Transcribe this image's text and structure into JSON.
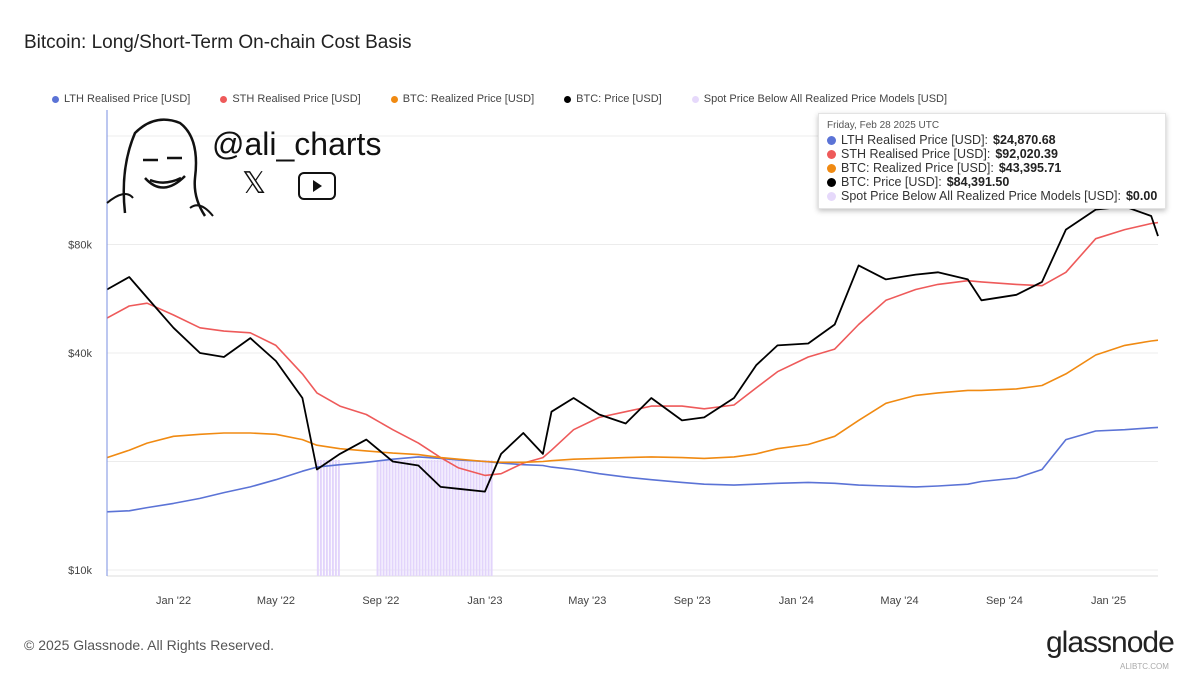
{
  "title": "Bitcoin: Long/Short-Term On-chain Cost Basis",
  "legend": [
    {
      "label": "LTH Realised Price [USD]",
      "color": "#5b73d6"
    },
    {
      "label": "STH Realised Price [USD]",
      "color": "#ee5a5a"
    },
    {
      "label": "BTC: Realized Price [USD]",
      "color": "#f08a12"
    },
    {
      "label": "BTC: Price [USD]",
      "color": "#000000"
    },
    {
      "label": "Spot Price Below All Realized Price Models [USD]",
      "color": "#e6d9fb"
    }
  ],
  "tooltip": {
    "date": "Friday, Feb 28 2025 UTC",
    "rows": [
      {
        "label": "LTH Realised Price [USD]:",
        "value": "$24,870.68",
        "color": "#5b73d6"
      },
      {
        "label": "STH Realised Price [USD]:",
        "value": "$92,020.39",
        "color": "#ee5a5a"
      },
      {
        "label": "BTC: Realized Price [USD]:",
        "value": "$43,395.71",
        "color": "#f08a12"
      },
      {
        "label": "BTC: Price [USD]:",
        "value": "$84,391.50",
        "color": "#000000"
      },
      {
        "label": "Spot Price Below All Realized Price Models [USD]:",
        "value": "$0.00",
        "color": "#e6d9fb"
      }
    ]
  },
  "watermark": {
    "handle": "@ali_charts",
    "x_icon": "x-logo-icon",
    "youtube_icon": "youtube-icon"
  },
  "footer": {
    "copyright": "© 2025 Glassnode. All Rights Reserved.",
    "brand": "glassnode",
    "site": "ALIBTC.COM"
  },
  "chart_data": {
    "type": "line",
    "title": "Bitcoin: Long/Short-Term On-chain Cost Basis",
    "yscale": "log",
    "ylim": [
      10000,
      130000
    ],
    "xlim": [
      "2021-10-15",
      "2025-02-28"
    ],
    "yticks": [
      {
        "v": 10000,
        "label": "$10k"
      },
      {
        "v": 40000,
        "label": "$40k"
      },
      {
        "v": 80000,
        "label": "$80k"
      }
    ],
    "xticks": [
      {
        "d": "2022-01-01",
        "label": "Jan '22"
      },
      {
        "d": "2022-05-01",
        "label": "May '22"
      },
      {
        "d": "2022-09-01",
        "label": "Sep '22"
      },
      {
        "d": "2023-01-01",
        "label": "Jan '23"
      },
      {
        "d": "2023-05-01",
        "label": "May '23"
      },
      {
        "d": "2023-09-01",
        "label": "Sep '23"
      },
      {
        "d": "2024-01-01",
        "label": "Jan '24"
      },
      {
        "d": "2024-05-01",
        "label": "May '24"
      },
      {
        "d": "2024-09-01",
        "label": "Sep '24"
      },
      {
        "d": "2025-01-01",
        "label": "Jan '25"
      }
    ],
    "grid": true,
    "legend_position": "top",
    "x": [
      "2021-10-15",
      "2021-11-10",
      "2021-12-01",
      "2022-01-01",
      "2022-02-01",
      "2022-03-01",
      "2022-04-01",
      "2022-05-01",
      "2022-06-01",
      "2022-06-18",
      "2022-07-15",
      "2022-08-15",
      "2022-09-15",
      "2022-10-15",
      "2022-11-10",
      "2022-12-01",
      "2023-01-01",
      "2023-01-20",
      "2023-02-15",
      "2023-03-10",
      "2023-03-20",
      "2023-04-15",
      "2023-05-15",
      "2023-06-15",
      "2023-07-15",
      "2023-08-20",
      "2023-09-15",
      "2023-10-20",
      "2023-11-15",
      "2023-12-10",
      "2024-01-15",
      "2024-02-15",
      "2024-03-14",
      "2024-04-15",
      "2024-05-20",
      "2024-06-15",
      "2024-07-20",
      "2024-08-05",
      "2024-09-15",
      "2024-10-15",
      "2024-11-12",
      "2024-12-17",
      "2025-01-20",
      "2025-02-20",
      "2025-02-28"
    ],
    "series": [
      {
        "name": "LTH Realised Price [USD]",
        "color": "#5b73d6",
        "values": [
          14500,
          14600,
          14900,
          15300,
          15800,
          16400,
          17000,
          17800,
          18800,
          19300,
          19600,
          19900,
          20300,
          20600,
          20400,
          20200,
          20000,
          19800,
          19600,
          19500,
          19300,
          19000,
          18500,
          18100,
          17800,
          17500,
          17300,
          17200,
          17300,
          17400,
          17500,
          17400,
          17200,
          17100,
          17000,
          17100,
          17300,
          17600,
          18000,
          19000,
          23000,
          24300,
          24500,
          24800,
          24870.68
        ]
      },
      {
        "name": "STH Realised Price [USD]",
        "color": "#ee5a5a",
        "values": [
          50000,
          54000,
          55000,
          51000,
          47000,
          46000,
          45500,
          42000,
          35000,
          31000,
          28500,
          27000,
          24500,
          22500,
          20500,
          19200,
          18300,
          18500,
          19800,
          20500,
          21500,
          24500,
          26500,
          27500,
          28500,
          28500,
          28000,
          28700,
          32000,
          35500,
          39000,
          41000,
          48000,
          56000,
          60000,
          62000,
          63500,
          63000,
          62000,
          61500,
          67000,
          83000,
          88000,
          91500,
          92020.39
        ]
      },
      {
        "name": "BTC: Realized Price [USD]",
        "color": "#f08a12",
        "values": [
          20500,
          21500,
          22500,
          23500,
          23800,
          24000,
          24000,
          23800,
          23000,
          22200,
          21700,
          21400,
          21100,
          20900,
          20500,
          20300,
          20000,
          19900,
          19900,
          20000,
          20100,
          20300,
          20400,
          20500,
          20600,
          20500,
          20400,
          20600,
          21000,
          21700,
          22300,
          23500,
          26000,
          29000,
          30500,
          31000,
          31500,
          31500,
          31800,
          32500,
          35000,
          39500,
          42000,
          43200,
          43395.71
        ]
      },
      {
        "name": "BTC: Price [USD]",
        "color": "#000000",
        "values": [
          60000,
          65000,
          57000,
          47000,
          40000,
          39000,
          44000,
          38000,
          30000,
          19000,
          21000,
          23000,
          20000,
          19500,
          17000,
          16800,
          16500,
          21000,
          24000,
          21000,
          27500,
          30000,
          27000,
          25500,
          30000,
          26000,
          26500,
          30000,
          37000,
          42000,
          42500,
          48000,
          70000,
          64000,
          66000,
          67000,
          64000,
          56000,
          58000,
          63000,
          88000,
          100000,
          102000,
          96000,
          84391.5
        ]
      }
    ],
    "spot_below_ranges": [
      [
        "2022-06-18",
        "2022-07-14"
      ],
      [
        "2022-08-27",
        "2023-01-11"
      ]
    ]
  }
}
